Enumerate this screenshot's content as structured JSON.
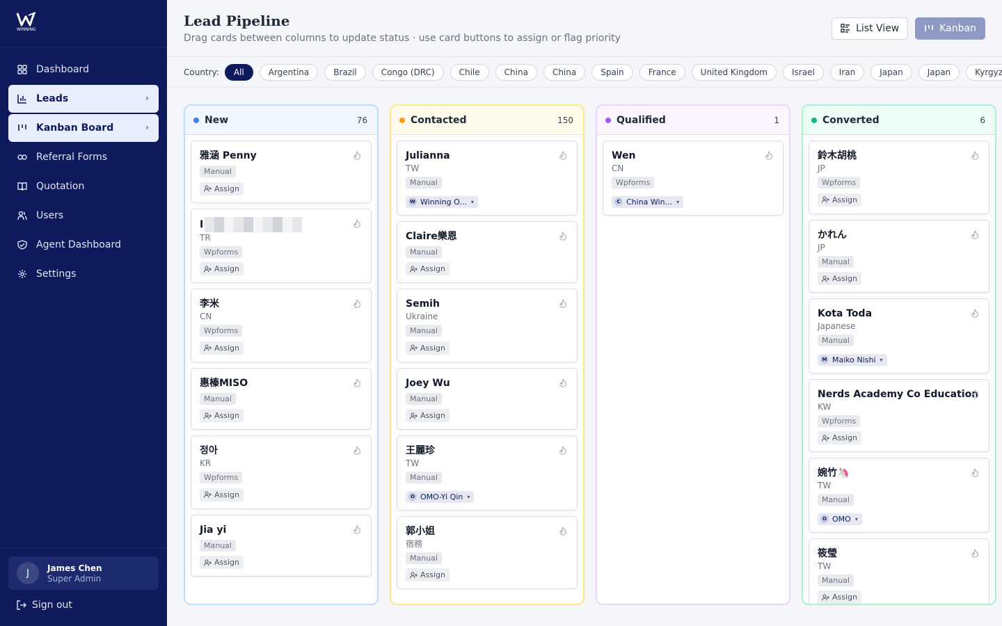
{
  "sidebar": {
    "logo_text": "WINNING",
    "items": [
      {
        "label": "Dashboard",
        "icon": "grid-icon"
      },
      {
        "label": "Leads",
        "icon": "bar-chart-icon"
      },
      {
        "label": "Kanban Board",
        "icon": "kanban-icon"
      },
      {
        "label": "Referral Forms",
        "icon": "link-icon"
      },
      {
        "label": "Quotation",
        "icon": "book-icon"
      },
      {
        "label": "Users",
        "icon": "users-icon"
      },
      {
        "label": "Agent Dashboard",
        "icon": "shield-icon"
      },
      {
        "label": "Settings",
        "icon": "gear-icon"
      }
    ],
    "user": {
      "initial": "J",
      "name": "James Chen",
      "role": "Super Admin"
    },
    "sign_out": "Sign out"
  },
  "header": {
    "title": "Lead Pipeline",
    "subtitle": "Drag cards between columns to update status · use card buttons to assign or flag priority",
    "list_view": "List View",
    "kanban": "Kanban"
  },
  "filters": {
    "label": "Country:",
    "chips": [
      "All",
      "Argentina",
      "Brazil",
      "Congo (DRC)",
      "Chile",
      "China",
      "China",
      "Spain",
      "France",
      "United Kingdom",
      "Israel",
      "Iran",
      "Japan",
      "Japan",
      "Kyrgyzstan"
    ]
  },
  "assign_label": "Assign",
  "columns": [
    {
      "title": "New",
      "count": "76",
      "color": "#3b82f6",
      "border": "#bfdbfe",
      "head_bg": "#eff6ff",
      "cards": [
        {
          "name": "雅涵 Penny",
          "country": "",
          "source": "Manual",
          "agent": null
        },
        {
          "name": "I",
          "country": "TR",
          "source": "Wpforms",
          "agent": null,
          "redacted": true
        },
        {
          "name": "李米",
          "country": "CN",
          "source": "Wpforms",
          "agent": null
        },
        {
          "name": "惠榛MISO",
          "country": "",
          "source": "Manual",
          "agent": null
        },
        {
          "name": "정아",
          "country": "KR",
          "source": "Wpforms",
          "agent": null
        },
        {
          "name": "Jia yi",
          "country": "",
          "source": "Manual",
          "agent": null
        }
      ]
    },
    {
      "title": "Contacted",
      "count": "150",
      "color": "#f59e0b",
      "border": "#fde68a",
      "head_bg": "#fffbeb",
      "cards": [
        {
          "name": "Julianna",
          "country": "TW",
          "source": "Manual",
          "agent": {
            "initial": "W",
            "name": "Winning O..."
          }
        },
        {
          "name": "Claire樂恩",
          "country": "",
          "source": "Manual",
          "agent": null
        },
        {
          "name": "Semih",
          "country": "Ukraine",
          "source": "Manual",
          "agent": null
        },
        {
          "name": "Joey Wu",
          "country": "",
          "source": "Manual",
          "agent": null
        },
        {
          "name": "王麗珍",
          "country": "TW",
          "source": "Manual",
          "agent": {
            "initial": "O",
            "name": "OMO-Yi Qin"
          }
        },
        {
          "name": "郭小姐",
          "country": "宿務",
          "source": "Manual",
          "agent": null
        }
      ]
    },
    {
      "title": "Qualified",
      "count": "1",
      "color": "#a855f7",
      "border": "#e9d5ff",
      "head_bg": "#faf5ff",
      "cards": [
        {
          "name": "Wen",
          "country": "CN",
          "source": "Wpforms",
          "agent": {
            "initial": "C",
            "name": "China Win..."
          }
        }
      ]
    },
    {
      "title": "Converted",
      "count": "6",
      "color": "#10b981",
      "border": "#a7f3d0",
      "head_bg": "#ecfdf5",
      "cards": [
        {
          "name": "鈴木胡桃",
          "country": "JP",
          "source": "Wpforms",
          "agent": null
        },
        {
          "name": "かれん",
          "country": "JP",
          "source": "Manual",
          "agent": null
        },
        {
          "name": "Kota Toda",
          "country": "Japanese",
          "source": "Manual",
          "agent": {
            "initial": "M",
            "name": "Maiko Nishi"
          }
        },
        {
          "name": "Nerds Academy Co Education",
          "country": "KW",
          "source": "Wpforms",
          "agent": null
        },
        {
          "name": "婉竹🦄",
          "country": "TW",
          "source": "Manual",
          "agent": {
            "initial": "O",
            "name": "OMO"
          }
        },
        {
          "name": "筱瑩",
          "country": "TW",
          "source": "Manual",
          "agent": null
        }
      ]
    }
  ]
}
